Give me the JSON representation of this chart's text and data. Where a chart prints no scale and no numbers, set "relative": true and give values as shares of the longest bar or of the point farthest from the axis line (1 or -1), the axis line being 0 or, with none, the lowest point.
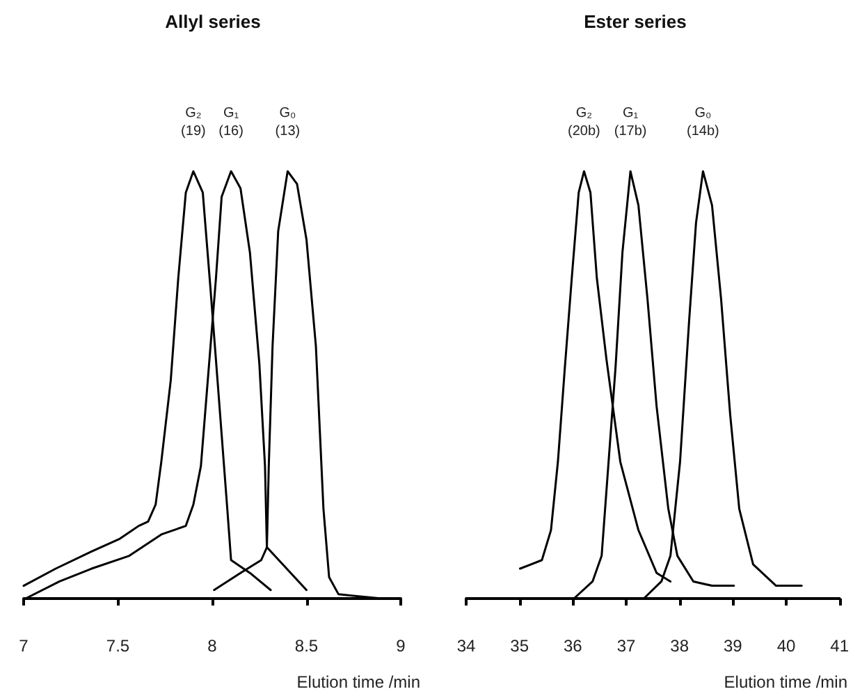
{
  "chart_data": [
    {
      "type": "line",
      "relative": true,
      "title": "Allyl series",
      "xlabel": "Elution time /min",
      "xlim": [
        7,
        9
      ],
      "xticks": [
        7,
        7.5,
        8,
        8.5,
        9
      ],
      "marker": "none",
      "series": [
        {
          "name": "G₂ (19)",
          "color": "#000000",
          "x": [
            7.0,
            7.17,
            7.36,
            7.51,
            7.61,
            7.66,
            7.7,
            7.73,
            7.78,
            7.82,
            7.86,
            7.9,
            7.95,
            7.99,
            8.03,
            8.08,
            8.1,
            8.2,
            8.31
          ],
          "values": [
            0.03,
            0.07,
            0.11,
            0.14,
            0.17,
            0.18,
            0.22,
            0.32,
            0.51,
            0.75,
            0.95,
            1,
            0.95,
            0.73,
            0.5,
            0.21,
            0.09,
            0.06,
            0.02
          ]
        },
        {
          "name": "G₁ (16)",
          "color": "#000000",
          "x": [
            7.01,
            7.19,
            7.36,
            7.56,
            7.73,
            7.86,
            7.9,
            7.94,
            7.98,
            8.02,
            8.05,
            8.1,
            8.15,
            8.2,
            8.25,
            8.28,
            8.29,
            8.5
          ],
          "values": [
            0,
            0.04,
            0.07,
            0.1,
            0.15,
            0.17,
            0.22,
            0.31,
            0.53,
            0.75,
            0.94,
            1,
            0.96,
            0.81,
            0.55,
            0.31,
            0.12,
            0.02
          ]
        },
        {
          "name": "G₀ (13)",
          "color": "#000000",
          "x": [
            8.01,
            8.15,
            8.26,
            8.29,
            8.3,
            8.32,
            8.35,
            8.4,
            8.45,
            8.5,
            8.55,
            8.59,
            8.62,
            8.67,
            8.9
          ],
          "values": [
            0.02,
            0.06,
            0.09,
            0.12,
            0.31,
            0.59,
            0.86,
            1,
            0.97,
            0.84,
            0.59,
            0.21,
            0.05,
            0.01,
            0
          ]
        }
      ]
    },
    {
      "type": "line",
      "relative": true,
      "title": "Ester series",
      "xlabel": "Elution time /min",
      "xlim": [
        34,
        41
      ],
      "xticks": [
        34,
        35,
        36,
        37,
        38,
        39,
        40,
        41
      ],
      "marker": "none",
      "series": [
        {
          "name": "G₂ (20b)",
          "color": "#000000",
          "x": [
            35.01,
            35.42,
            35.59,
            35.72,
            35.85,
            35.98,
            36.11,
            36.21,
            36.33,
            36.45,
            36.63,
            36.89,
            37.23,
            37.57,
            37.83
          ],
          "values": [
            0.07,
            0.09,
            0.16,
            0.32,
            0.54,
            0.75,
            0.95,
            1,
            0.95,
            0.75,
            0.56,
            0.32,
            0.16,
            0.06,
            0.04
          ]
        },
        {
          "name": "G₁ (17b)",
          "color": "#000000",
          "x": [
            36.02,
            36.37,
            36.54,
            36.67,
            36.8,
            36.93,
            37.08,
            37.23,
            37.4,
            37.57,
            37.79,
            37.96,
            38.26,
            38.61,
            39.02
          ],
          "values": [
            0,
            0.04,
            0.1,
            0.32,
            0.54,
            0.81,
            1,
            0.92,
            0.7,
            0.45,
            0.21,
            0.1,
            0.04,
            0.03,
            0.03
          ]
        },
        {
          "name": "G₀ (14b)",
          "color": "#000000",
          "x": [
            37.33,
            37.66,
            37.83,
            38.01,
            38.18,
            38.31,
            38.44,
            38.61,
            38.78,
            38.95,
            39.12,
            39.38,
            39.81,
            40.29
          ],
          "values": [
            0,
            0.04,
            0.1,
            0.32,
            0.65,
            0.88,
            1,
            0.92,
            0.7,
            0.43,
            0.21,
            0.08,
            0.03,
            0.03
          ]
        }
      ]
    }
  ]
}
